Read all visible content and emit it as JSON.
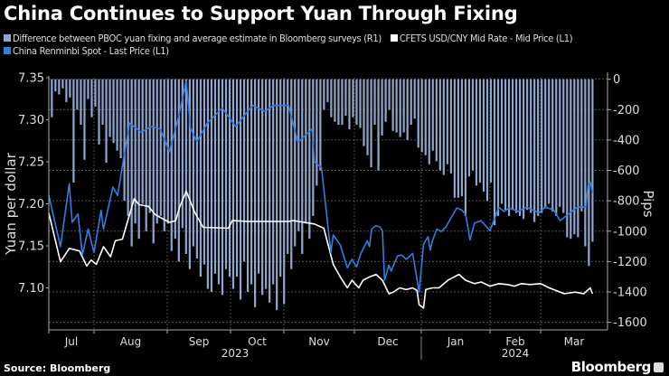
{
  "chart_data": {
    "type": "bar+line",
    "title": "China Continues to Support Yuan Through Fixing",
    "source": "Source: Bloomberg",
    "brand": "Bloomberg",
    "left_axis": {
      "label": "Yuan per dollar",
      "ylim": [
        7.05,
        7.35
      ],
      "ticks": [
        "7.35",
        "7.30",
        "7.25",
        "7.20",
        "7.15",
        "7.10"
      ]
    },
    "right_axis": {
      "label": "Pips",
      "ylim": [
        -1650,
        10
      ],
      "ticks": [
        "0",
        "-200",
        "-400",
        "-600",
        "-800",
        "-1000",
        "-1200",
        "-1400",
        "-1600"
      ]
    },
    "x_ticks": [
      {
        "label": "Jul",
        "month": "2023-07"
      },
      {
        "label": "Aug",
        "month": "2023-08"
      },
      {
        "label": "Sep",
        "month": "2023-09"
      },
      {
        "label": "Oct",
        "month": "2023-10"
      },
      {
        "label": "Nov",
        "month": "2023-11"
      },
      {
        "label": "Dec",
        "month": "2023-12"
      },
      {
        "label": "Jan",
        "month": "2024-01"
      },
      {
        "label": "Feb",
        "month": "2024-02"
      },
      {
        "label": "Mar",
        "month": "2024-03"
      }
    ],
    "years": [
      {
        "label": "2023"
      },
      {
        "label": "2024"
      }
    ],
    "grid": true,
    "legend_placement": "top-left",
    "series": [
      {
        "name": "Difference between PBOC yuan fixing and average estimate in Bloomberg surveys (R1)",
        "kind": "bar",
        "axis": "right",
        "color": "#8ea7cf",
        "start": "2023-07-03",
        "end": "2024-03-25",
        "values": [
          -250,
          -80,
          -100,
          -60,
          -150,
          -120,
          -680,
          -200,
          -300,
          -530,
          -130,
          -250,
          -180,
          -430,
          -300,
          -550,
          -380,
          -420,
          -470,
          -520,
          -800,
          -900,
          -1100,
          -950,
          -1050,
          -820,
          -1000,
          -880,
          -1080,
          -950,
          -900,
          -1000,
          -950,
          -1130,
          -1050,
          -1200,
          -980,
          -1150,
          -1250,
          -1100,
          -1180,
          -1300,
          -1220,
          -1380,
          -1400,
          -1280,
          -1350,
          -1420,
          -1250,
          -1300,
          -1380,
          -1300,
          -1450,
          -1200,
          -1400,
          -1350,
          -1500,
          -1280,
          -1420,
          -1380,
          -1470,
          -1350,
          -1520,
          -1300,
          -1480,
          -1150,
          -1250,
          -1100,
          -1000,
          -1150,
          -950,
          -1050,
          -900,
          -700,
          -600,
          -200,
          -150,
          -250,
          -280,
          -300,
          -300,
          -240,
          -330,
          -250,
          -300,
          -320,
          -440,
          -500,
          -580,
          -300,
          -600,
          -370,
          -280,
          -200,
          -340,
          -350,
          -380,
          -350,
          -400,
          -300,
          -260,
          -450,
          -480,
          -500,
          -560,
          -470,
          -540,
          -600,
          -630,
          -560,
          -620,
          -780,
          -780,
          -770,
          -900,
          -640,
          -600,
          -700,
          -680,
          -740,
          -800,
          -680,
          -960,
          -900,
          -820,
          -860,
          -900,
          -860,
          -880,
          -900,
          -920,
          -860,
          -880,
          -940,
          -900,
          -880,
          -850,
          -820,
          -870,
          -900,
          -840,
          -880,
          -1040,
          -1050,
          -1020,
          -1040,
          -870,
          -1100,
          -1230,
          -1070
        ]
      },
      {
        "name": "CFETS USD/CNY Mid Rate - Mid Price (L1)",
        "kind": "line",
        "axis": "left",
        "color": "#ffffff",
        "points": [
          [
            "2023-07-01",
            7.189
          ],
          [
            "2023-07-09",
            7.131
          ],
          [
            "2023-07-15",
            7.147
          ],
          [
            "2023-07-22",
            7.144
          ],
          [
            "2023-07-27",
            7.126
          ],
          [
            "2023-07-30",
            7.133
          ],
          [
            "2023-08-02",
            7.128
          ],
          [
            "2023-08-05",
            7.149
          ],
          [
            "2023-08-08",
            7.137
          ],
          [
            "2023-08-10",
            7.156
          ],
          [
            "2023-08-13",
            7.158
          ],
          [
            "2023-08-18",
            7.206
          ],
          [
            "2023-08-20",
            7.199
          ],
          [
            "2023-08-24",
            7.197
          ],
          [
            "2023-08-27",
            7.187
          ],
          [
            "2023-09-02",
            7.178
          ],
          [
            "2023-09-05",
            7.18
          ],
          [
            "2023-09-07",
            7.197
          ],
          [
            "2023-09-10",
            7.215
          ],
          [
            "2023-09-14",
            7.19
          ],
          [
            "2023-09-18",
            7.172
          ],
          [
            "2023-09-30",
            7.171
          ],
          [
            "2023-10-02",
            7.18
          ],
          [
            "2023-10-11",
            7.179
          ],
          [
            "2023-11-03",
            7.179
          ],
          [
            "2023-11-05",
            7.18
          ],
          [
            "2023-11-14",
            7.176
          ],
          [
            "2023-11-18",
            7.171
          ],
          [
            "2023-11-22",
            7.128
          ],
          [
            "2023-11-25",
            7.113
          ],
          [
            "2023-11-28",
            7.1
          ],
          [
            "2023-11-30",
            7.109
          ],
          [
            "2023-12-03",
            7.1
          ],
          [
            "2023-12-05",
            7.109
          ],
          [
            "2023-12-08",
            7.113
          ],
          [
            "2023-12-11",
            7.116
          ],
          [
            "2023-12-14",
            7.109
          ],
          [
            "2023-12-17",
            7.093
          ],
          [
            "2023-12-19",
            7.095
          ],
          [
            "2023-12-22",
            7.1
          ],
          [
            "2023-12-25",
            7.098
          ],
          [
            "2023-12-28",
            7.1
          ],
          [
            "2023-12-30",
            7.097
          ],
          [
            "2023-12-31",
            7.08
          ],
          [
            "2024-01-02",
            7.076
          ],
          [
            "2024-01-03",
            7.098
          ],
          [
            "2024-01-06",
            7.1
          ],
          [
            "2024-01-09",
            7.1
          ],
          [
            "2024-01-13",
            7.109
          ],
          [
            "2024-01-18",
            7.116
          ],
          [
            "2024-01-21",
            7.109
          ],
          [
            "2024-01-25",
            7.105
          ],
          [
            "2024-01-28",
            7.107
          ],
          [
            "2024-02-01",
            7.102
          ],
          [
            "2024-02-06",
            7.105
          ],
          [
            "2024-02-11",
            7.104
          ],
          [
            "2024-02-15",
            7.102
          ],
          [
            "2024-02-19",
            7.105
          ],
          [
            "2024-02-24",
            7.104
          ],
          [
            "2024-03-01",
            7.105
          ],
          [
            "2024-03-05",
            7.1
          ],
          [
            "2024-03-12",
            7.093
          ],
          [
            "2024-03-17",
            7.095
          ],
          [
            "2024-03-21",
            7.093
          ],
          [
            "2024-03-24",
            7.1
          ],
          [
            "2024-03-25",
            7.093
          ]
        ]
      },
      {
        "name": "China Renminbi Spot - Last Price (L1)",
        "kind": "line",
        "axis": "left",
        "color": "#2f7fe0",
        "points": [
          [
            "2023-07-01",
            7.21
          ],
          [
            "2023-07-09",
            7.149
          ],
          [
            "2023-07-15",
            7.224
          ],
          [
            "2023-07-17",
            7.178
          ],
          [
            "2023-07-21",
            7.188
          ],
          [
            "2023-07-24",
            7.139
          ],
          [
            "2023-07-28",
            7.17
          ],
          [
            "2023-08-01",
            7.142
          ],
          [
            "2023-08-04",
            7.192
          ],
          [
            "2023-08-05",
            7.17
          ],
          [
            "2023-08-09",
            7.22
          ],
          [
            "2023-08-11",
            7.21
          ],
          [
            "2023-08-16",
            7.296
          ],
          [
            "2023-08-21",
            7.285
          ],
          [
            "2023-08-25",
            7.292
          ],
          [
            "2023-08-29",
            7.289
          ],
          [
            "2023-09-02",
            7.262
          ],
          [
            "2023-09-06",
            7.3
          ],
          [
            "2023-09-10",
            7.346
          ],
          [
            "2023-09-12",
            7.29
          ],
          [
            "2023-09-15",
            7.274
          ],
          [
            "2023-09-20",
            7.296
          ],
          [
            "2023-09-27",
            7.314
          ],
          [
            "2023-10-04",
            7.292
          ],
          [
            "2023-10-11",
            7.31
          ],
          [
            "2023-10-14",
            7.317
          ],
          [
            "2023-10-21",
            7.31
          ],
          [
            "2023-10-26",
            7.317
          ],
          [
            "2023-11-03",
            7.317
          ],
          [
            "2023-11-07",
            7.273
          ],
          [
            "2023-11-13",
            7.289
          ],
          [
            "2023-11-14",
            7.25
          ],
          [
            "2023-11-17",
            7.243
          ],
          [
            "2023-11-21",
            7.142
          ],
          [
            "2023-11-22",
            7.163
          ],
          [
            "2023-11-25",
            7.151
          ],
          [
            "2023-11-28",
            7.124
          ],
          [
            "2023-11-30",
            7.134
          ],
          [
            "2023-12-02",
            7.125
          ],
          [
            "2023-12-04",
            7.141
          ],
          [
            "2023-12-07",
            7.156
          ],
          [
            "2023-12-08",
            7.149
          ],
          [
            "2023-12-09",
            7.17
          ],
          [
            "2023-12-11",
            7.174
          ],
          [
            "2023-12-13",
            7.172
          ],
          [
            "2023-12-14",
            7.168
          ],
          [
            "2023-12-15",
            7.109
          ],
          [
            "2023-12-17",
            7.127
          ],
          [
            "2023-12-18",
            7.12
          ],
          [
            "2023-12-21",
            7.138
          ],
          [
            "2023-12-23",
            7.139
          ],
          [
            "2023-12-25",
            7.134
          ],
          [
            "2023-12-28",
            7.141
          ],
          [
            "2023-12-31",
            7.095
          ],
          [
            "2024-01-02",
            7.152
          ],
          [
            "2024-01-04",
            7.161
          ],
          [
            "2024-01-05",
            7.145
          ],
          [
            "2024-01-06",
            7.156
          ],
          [
            "2024-01-08",
            7.17
          ],
          [
            "2024-01-10",
            7.167
          ],
          [
            "2024-01-12",
            7.172
          ],
          [
            "2024-01-17",
            7.195
          ],
          [
            "2024-01-19",
            7.193
          ],
          [
            "2024-01-21",
            7.188
          ],
          [
            "2024-01-23",
            7.157
          ],
          [
            "2024-01-25",
            7.177
          ],
          [
            "2024-01-28",
            7.18
          ],
          [
            "2024-02-01",
            7.168
          ],
          [
            "2024-02-06",
            7.196
          ],
          [
            "2024-02-09",
            7.191
          ],
          [
            "2024-02-12",
            7.195
          ],
          [
            "2024-02-17",
            7.191
          ],
          [
            "2024-02-22",
            7.196
          ],
          [
            "2024-02-29",
            7.189
          ],
          [
            "2024-03-03",
            7.196
          ],
          [
            "2024-03-07",
            7.193
          ],
          [
            "2024-03-10",
            7.18
          ],
          [
            "2024-03-14",
            7.188
          ],
          [
            "2024-03-18",
            7.196
          ],
          [
            "2024-03-22",
            7.196
          ],
          [
            "2024-03-23",
            7.222
          ],
          [
            "2024-03-24",
            7.226
          ],
          [
            "2024-03-25",
            7.213
          ]
        ]
      }
    ]
  }
}
